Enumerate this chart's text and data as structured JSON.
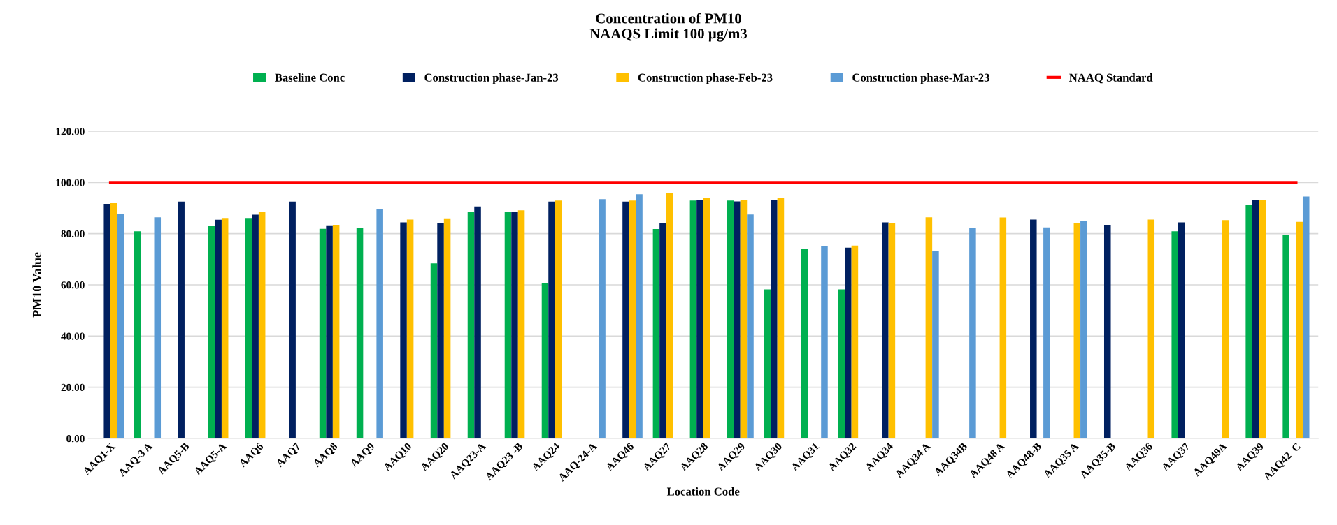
{
  "chart_data": {
    "type": "bar",
    "title": "Concentration of PM10\nNAAQS Limit 100 µg/m3",
    "xlabel": "Location Code",
    "ylabel": "PM10 Value",
    "categories": [
      "AAQ1-X",
      "AAQ-3 A",
      "AAQ5-B",
      "AAQ5-A",
      "AAQ6",
      "AAQ7",
      "AAQ8",
      "AAQ9",
      "AAQ10",
      "AAQ20",
      "AAQ23-A",
      "AAQ23 -B",
      "AAQ24",
      "AAQ-24-A",
      "AAQ46",
      "AAQ27",
      "AAQ28",
      "AAQ29",
      "AAQ30",
      "AAQ31",
      "AAQ32",
      "AAQ34",
      "AAQ34 A",
      "AAQ34B",
      "AAQ48 A",
      "AAQ48-B",
      "AAQ35 A",
      "AAQ35-B",
      "AAQ36",
      "AAQ37",
      "AAQ49A",
      "AAQ39",
      "AAQ42  C"
    ],
    "series": [
      {
        "name": "Baseline Conc",
        "color": "#00b050",
        "values": [
          null,
          80.9,
          null,
          82.9,
          86.1,
          null,
          81.9,
          82.2,
          null,
          68.4,
          88.6,
          88.6,
          60.8,
          null,
          null,
          81.8,
          92.9,
          92.9,
          58.2,
          74.1,
          58.2,
          null,
          null,
          null,
          null,
          null,
          null,
          null,
          null,
          80.9,
          null,
          91.2,
          79.6
        ]
      },
      {
        "name": "Construction phase-Jan-23",
        "color": "#002060",
        "values": [
          91.6,
          null,
          92.5,
          85.4,
          87.4,
          92.5,
          83.0,
          null,
          84.4,
          84.0,
          90.6,
          88.6,
          92.5,
          null,
          92.5,
          84.1,
          93.1,
          92.6,
          93.1,
          null,
          74.5,
          84.4,
          null,
          null,
          null,
          85.5,
          null,
          83.4,
          null,
          84.4,
          null,
          93.2,
          null
        ]
      },
      {
        "name": "Construction phase-Feb-23",
        "color": "#ffc000",
        "values": [
          91.9,
          null,
          null,
          86.1,
          88.6,
          null,
          83.2,
          null,
          85.5,
          86.0,
          null,
          89.1,
          92.9,
          null,
          92.9,
          95.7,
          94.0,
          93.2,
          94.0,
          null,
          75.3,
          84.1,
          86.4,
          null,
          86.3,
          null,
          84.2,
          null,
          85.5,
          null,
          85.3,
          93.2,
          84.6
        ]
      },
      {
        "name": "Construction phase-Mar-23",
        "color": "#5b9bd5",
        "values": [
          87.8,
          86.4,
          null,
          null,
          null,
          null,
          null,
          89.5,
          null,
          null,
          null,
          null,
          null,
          93.5,
          95.4,
          null,
          null,
          87.5,
          null,
          75.0,
          null,
          null,
          73.1,
          82.3,
          null,
          82.4,
          84.8,
          null,
          null,
          null,
          null,
          null,
          94.5
        ]
      },
      {
        "name": "NAAQ Standard",
        "type": "line",
        "color": "#ff0000",
        "values": [
          100,
          100,
          100,
          100,
          100,
          100,
          100,
          100,
          100,
          100,
          100,
          100,
          100,
          100,
          100,
          100,
          100,
          100,
          100,
          100,
          100,
          100,
          100,
          100,
          100,
          100,
          100,
          100,
          100,
          100,
          100,
          100,
          100
        ]
      }
    ],
    "ylim": [
      0,
      120
    ],
    "yticks": [
      {
        "value": 0,
        "label": "0.00"
      },
      {
        "value": 20,
        "label": "20.00"
      },
      {
        "value": 40,
        "label": "40.00"
      },
      {
        "value": 60,
        "label": "60.00"
      },
      {
        "value": 80,
        "label": "80.00"
      },
      {
        "value": 100,
        "label": "100.00"
      },
      {
        "value": 120,
        "label": "120.00"
      }
    ],
    "grid": "y",
    "legend": "top",
    "marker": "none",
    "line_style": "solid"
  }
}
